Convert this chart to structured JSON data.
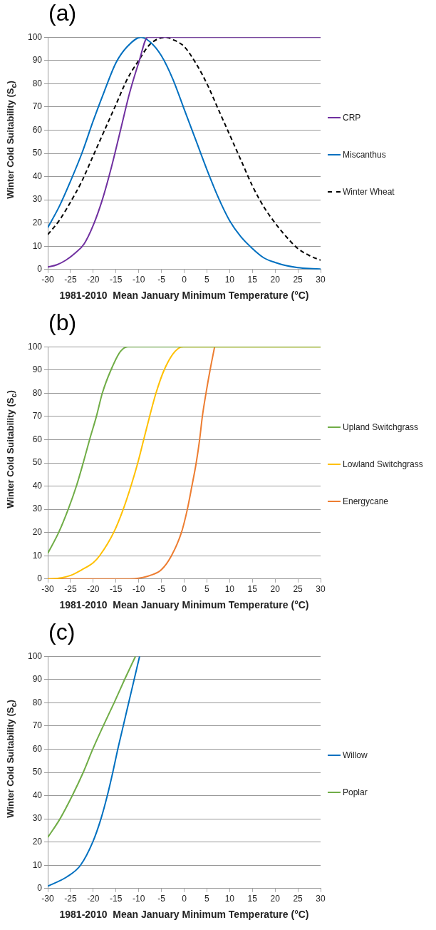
{
  "chart_data": [
    {
      "type": "line",
      "title": "(a)",
      "xlabel": "1981-2010  Mean January Minimum Temperature (°C)",
      "ylabel": "Winter Cold Suitability (S$_{c}$)",
      "xlim": [
        -30,
        30
      ],
      "xticks": [
        -30,
        -25,
        -20,
        -15,
        -10,
        -5,
        0,
        5,
        10,
        15,
        20,
        25,
        30
      ],
      "ylim": [
        0,
        100
      ],
      "yticks": [
        0,
        10,
        20,
        30,
        40,
        50,
        60,
        70,
        80,
        90,
        100
      ],
      "grid": "y",
      "legend": "right",
      "marker": "none",
      "line_style": "solid",
      "series": [
        {
          "name": "CRP",
          "color": "#7030a0",
          "x": [
            -30,
            -28,
            -26,
            -24,
            -22,
            -20,
            -18,
            -16,
            -14,
            -12,
            -10,
            -8,
            30
          ],
          "values": [
            1,
            2,
            4,
            7,
            11,
            19,
            30,
            44,
            60,
            76,
            89,
            100,
            100
          ]
        },
        {
          "name": "Miscanthus",
          "color": "#0070c0",
          "x": [
            -30,
            -27.5,
            -25,
            -22.5,
            -20,
            -17.5,
            -15,
            -12.5,
            -9.5,
            -7.5,
            -5,
            -2.5,
            0,
            2.5,
            5,
            7.5,
            10,
            12.5,
            15,
            17.5,
            20,
            22.5,
            25,
            27.5,
            30
          ],
          "values": [
            18,
            27,
            38,
            50,
            64,
            77,
            89,
            96,
            100,
            98,
            92,
            82,
            69,
            56,
            43,
            31,
            21,
            14,
            9,
            5,
            3,
            1.6,
            0.8,
            0.4,
            0.2
          ]
        },
        {
          "name": "Winter Wheat",
          "color": "#000000",
          "line_style": "dashed",
          "x": [
            -30,
            -27.5,
            -25,
            -22.5,
            -20,
            -17.5,
            -15,
            -12.5,
            -10,
            -7.5,
            -4,
            -2.5,
            0,
            2.5,
            5,
            7.5,
            10,
            12.5,
            15,
            17.5,
            20,
            22.5,
            25,
            27.5,
            30
          ],
          "values": [
            15,
            21,
            29,
            38,
            49,
            60,
            71,
            82,
            90,
            97,
            100,
            99,
            96,
            89,
            80,
            69,
            58,
            47,
            36,
            27,
            20,
            14,
            9,
            6,
            4
          ]
        }
      ]
    },
    {
      "type": "line",
      "title": "(b)",
      "xlabel": "1981-2010  Mean January Minimum Temperature (°C)",
      "ylabel": "Winter Cold Suitability (S$_{c}$)",
      "xlim": [
        -30,
        30
      ],
      "xticks": [
        -30,
        -25,
        -20,
        -15,
        -10,
        -5,
        0,
        5,
        10,
        15,
        20,
        25,
        30
      ],
      "ylim": [
        0,
        100
      ],
      "yticks": [
        0,
        10,
        20,
        30,
        40,
        50,
        60,
        70,
        80,
        90,
        100
      ],
      "grid": "y",
      "legend": "right",
      "marker": "none",
      "line_style": "solid",
      "series": [
        {
          "name": "Upland Switchgrass",
          "color": "#70ad47",
          "x": [
            -30,
            -27.6,
            -25.5,
            -23.7,
            -22.2,
            -20.8,
            -19.3,
            -18,
            -16.1,
            -14,
            -12.4,
            30
          ],
          "values": [
            11,
            20,
            30,
            40,
            50,
            60,
            70,
            80,
            90,
            98,
            100,
            100
          ]
        },
        {
          "name": "Lowland Switchgrass",
          "color": "#ffc000",
          "x": [
            -30,
            -27,
            -25,
            -22.5,
            -20,
            -18.6,
            -15.5,
            -13.4,
            -11.7,
            -10.2,
            -8.9,
            -7.6,
            -6.2,
            -4.4,
            -2,
            -0.2,
            30
          ],
          "values": [
            0,
            0.5,
            1.5,
            4,
            7,
            10,
            20,
            30,
            40,
            50,
            60,
            70,
            80,
            90,
            98,
            100,
            100
          ]
        },
        {
          "name": "Energycane",
          "color": "#ed7d31",
          "x": [
            -30,
            -12,
            -10,
            -7.5,
            -5,
            -2.8,
            -0.6,
            0.7,
            1.7,
            2.65,
            3.4,
            4,
            4.8,
            5.7,
            6.7
          ],
          "values": [
            0,
            0,
            0.3,
            1.5,
            4,
            10,
            20,
            30,
            40,
            50,
            60,
            70,
            80,
            90,
            100
          ]
        }
      ]
    },
    {
      "type": "line",
      "title": "(c)",
      "xlabel": "1981-2010  Mean January Minimum Temperature (°C)",
      "ylabel": "Winter Cold Suitability (S$_{c}$)",
      "xlim": [
        -30,
        30
      ],
      "xticks": [
        -30,
        -25,
        -20,
        -15,
        -10,
        -5,
        0,
        5,
        10,
        15,
        20,
        25,
        30
      ],
      "ylim": [
        0,
        100
      ],
      "yticks": [
        0,
        10,
        20,
        30,
        40,
        50,
        60,
        70,
        80,
        90,
        100
      ],
      "grid": "y",
      "legend": "right",
      "marker": "none",
      "line_style": "solid",
      "series": [
        {
          "name": "Willow",
          "color": "#0070c0",
          "x": [
            -30,
            -25.8,
            -22.8,
            -20.1,
            -18.3,
            -16.9,
            -15.7,
            -14.6,
            -13.4,
            -12.2,
            -11,
            -9.8
          ],
          "values": [
            1,
            5,
            10,
            20,
            30,
            40,
            50,
            60,
            70,
            80,
            90,
            100
          ]
        },
        {
          "name": "Poplar",
          "color": "#70ad47",
          "x": [
            -30,
            -27.3,
            -24.6,
            -22.2,
            -20.1,
            -17.8,
            -15.4,
            -13.1,
            -10.7
          ],
          "values": [
            22,
            30,
            40,
            50,
            60,
            70,
            80,
            90,
            100
          ]
        }
      ]
    }
  ]
}
